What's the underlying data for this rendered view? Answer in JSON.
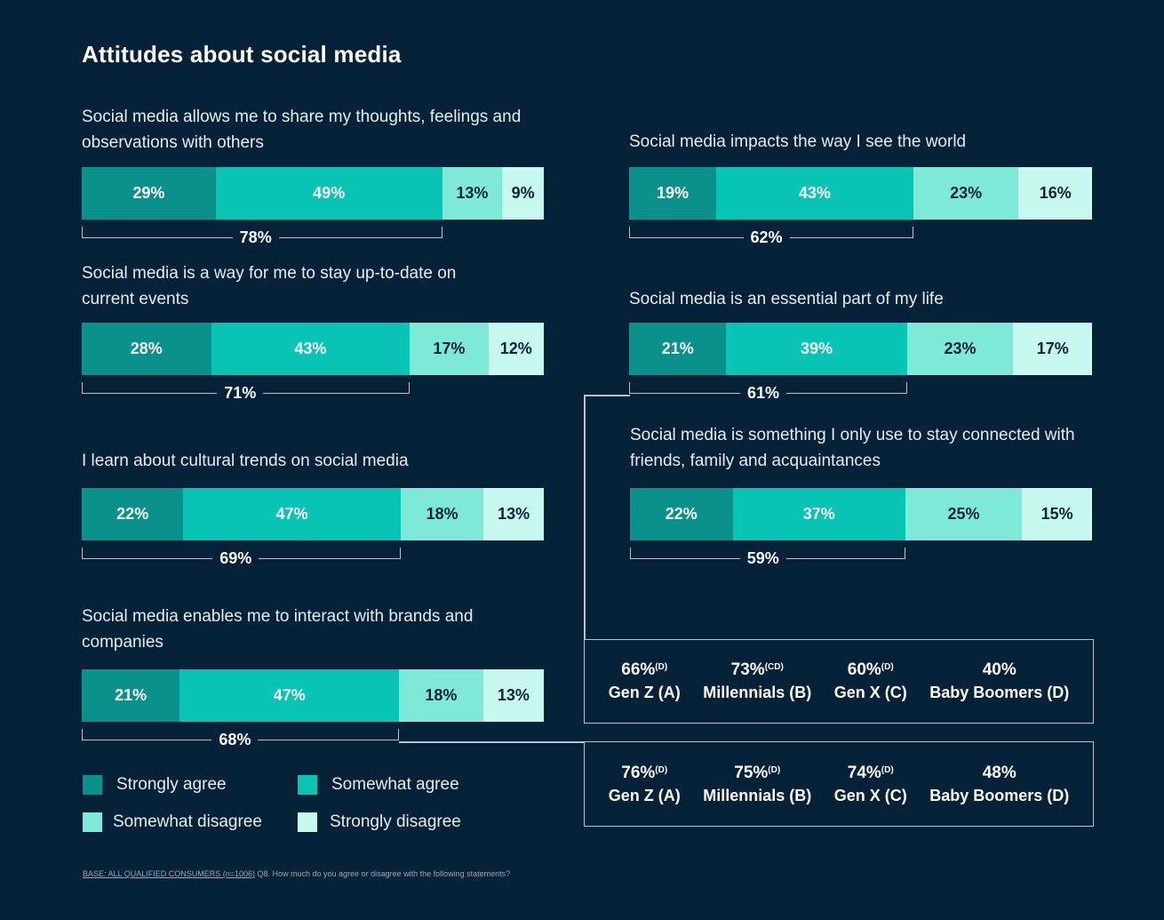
{
  "title": "Attitudes about social media",
  "colors": {
    "background": "#062239",
    "strongly_agree": "#0a918b",
    "somewhat_agree": "#07c4b4",
    "somewhat_disagree": "#7de9d6",
    "strongly_disagree": "#c7f8ee"
  },
  "chart_data": {
    "type": "bar",
    "orientation": "horizontal-stacked",
    "title": "Attitudes about social media",
    "series_names": [
      "Strongly agree",
      "Somewhat agree",
      "Somewhat disagree",
      "Strongly disagree"
    ],
    "statements": [
      {
        "label": "Social media allows me to share my thoughts, feelings and observations with others",
        "values": [
          29,
          49,
          13,
          9
        ],
        "agree_total": 78
      },
      {
        "label": "Social media is a way for me to stay up-to-date on current events",
        "values": [
          28,
          43,
          17,
          12
        ],
        "agree_total": 71
      },
      {
        "label": "I learn about cultural trends on social media",
        "values": [
          22,
          47,
          18,
          13
        ],
        "agree_total": 69
      },
      {
        "label": "Social media enables me to interact with brands and companies",
        "values": [
          21,
          47,
          18,
          13
        ],
        "agree_total": 68
      },
      {
        "label": "Social media impacts the way I see the world",
        "values": [
          19,
          43,
          23,
          16
        ],
        "agree_total": 62
      },
      {
        "label": "Social media is an essential part of my life",
        "values": [
          21,
          39,
          23,
          17
        ],
        "agree_total": 61
      },
      {
        "label": "Social media is something I only use to stay connected with friends, family and acquaintances",
        "values": [
          22,
          37,
          25,
          15
        ],
        "agree_total": 59
      }
    ],
    "generation_breakdowns": [
      {
        "linked_statement": "Social media is an essential part of my life",
        "groups": [
          {
            "name": "Gen Z (A)",
            "value": "66%",
            "sig": "(D)"
          },
          {
            "name": "Millennials (B)",
            "value": "73%",
            "sig": "(CD)"
          },
          {
            "name": "Gen X (C)",
            "value": "60%",
            "sig": "(D)"
          },
          {
            "name": "Baby Boomers (D)",
            "value": "40%",
            "sig": ""
          }
        ]
      },
      {
        "linked_statement": "Social media enables me to interact with brands and companies",
        "groups": [
          {
            "name": "Gen Z (A)",
            "value": "76%",
            "sig": "(D)"
          },
          {
            "name": "Millennials (B)",
            "value": "75%",
            "sig": "(D)"
          },
          {
            "name": "Gen X (C)",
            "value": "74%",
            "sig": "(D)"
          },
          {
            "name": "Baby Boomers (D)",
            "value": "48%",
            "sig": ""
          }
        ]
      }
    ],
    "legend": [
      "Strongly agree",
      "Somewhat agree",
      "Somewhat disagree",
      "Strongly disagree"
    ]
  },
  "footnote": {
    "base": "BASE: ALL QUALIFIED CONSUMERS (n=1006)",
    "question": " Q8. How much do you agree or disagree with the following statements?"
  }
}
